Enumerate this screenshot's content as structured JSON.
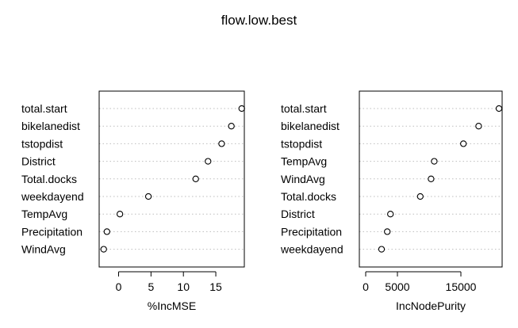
{
  "title": "flow.low.best",
  "chart_data": [
    {
      "type": "scatter",
      "subtype": "dotchart",
      "title": "",
      "xlabel": "%IncMSE",
      "ylabel": "",
      "xlim": [
        -3,
        19.4
      ],
      "xticks": [
        0,
        5,
        10,
        15
      ],
      "grid": "dotted-horizontal",
      "categories": [
        "total.start",
        "bikelanedist",
        "tstopdist",
        "District",
        "Total.docks",
        "weekdayend",
        "TempAvg",
        "Precipitation",
        "WindAvg"
      ],
      "values": [
        19.0,
        17.4,
        15.9,
        13.8,
        11.9,
        4.6,
        0.2,
        -1.8,
        -2.3
      ]
    },
    {
      "type": "scatter",
      "subtype": "dotchart",
      "title": "",
      "xlabel": "IncNodePurity",
      "ylabel": "",
      "xlim": [
        -1000,
        21500
      ],
      "xticks": [
        0,
        5000,
        15000
      ],
      "grid": "dotted-horizontal",
      "categories": [
        "total.start",
        "bikelanedist",
        "tstopdist",
        "TempAvg",
        "WindAvg",
        "Total.docks",
        "District",
        "Precipitation",
        "weekdayend"
      ],
      "values": [
        21000,
        17800,
        15400,
        10800,
        10300,
        8600,
        3900,
        3400,
        2500
      ]
    }
  ]
}
